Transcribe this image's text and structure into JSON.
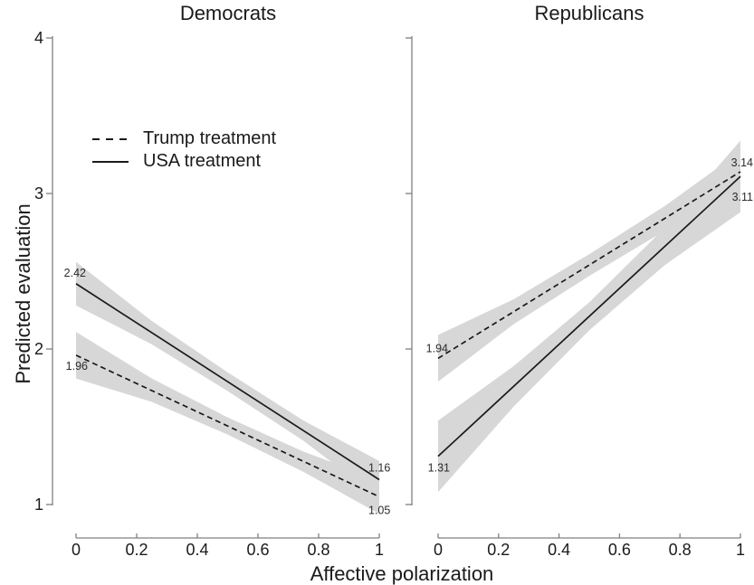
{
  "figure": {
    "background": "#ffffff",
    "band_color": "#d7d7d7",
    "line_color": "#1a1a1a",
    "axis_color": "#808080",
    "label_color": "#2b2b2b"
  },
  "legend": {
    "items": [
      {
        "label": "Trump treatment",
        "style": "dashed"
      },
      {
        "label": "USA treatment",
        "style": "solid"
      }
    ]
  },
  "chart_data": {
    "type": "line",
    "xlabel": "Affective polarization",
    "ylabel": "Predicted evaluation",
    "xlim": [
      0,
      1
    ],
    "ylim": [
      1,
      4
    ],
    "x_ticks": [
      0,
      0.2,
      0.4,
      0.6,
      0.8,
      1
    ],
    "x_tick_labels": [
      "0",
      "0.2",
      "0.4",
      "0.6",
      "0.8",
      "1"
    ],
    "y_ticks": [
      1,
      2,
      3,
      4
    ],
    "y_tick_labels": [
      "1",
      "2",
      "3",
      "4"
    ],
    "grid": false,
    "legend_position": "top-left-inside",
    "panels": [
      {
        "title": "Democrats",
        "series": [
          {
            "name": "Trump treatment",
            "style": "dashed",
            "x": [
              0,
              1
            ],
            "y": [
              1.96,
              1.05
            ],
            "labels": [
              "1.96",
              "1.05"
            ],
            "band": {
              "x": [
                0,
                0.25,
                0.5,
                0.75,
                1
              ],
              "upper": [
                2.11,
                1.81,
                1.56,
                1.34,
                1.16
              ],
              "lower": [
                1.81,
                1.66,
                1.45,
                1.21,
                0.94
              ]
            }
          },
          {
            "name": "USA treatment",
            "style": "solid",
            "x": [
              0,
              1
            ],
            "y": [
              2.42,
              1.16
            ],
            "labels": [
              "2.42",
              "1.16"
            ],
            "band": {
              "x": [
                0,
                0.25,
                0.5,
                0.75,
                1
              ],
              "upper": [
                2.56,
                2.18,
                1.85,
                1.54,
                1.28
              ],
              "lower": [
                2.28,
                2.03,
                1.73,
                1.41,
                1.04
              ]
            }
          }
        ]
      },
      {
        "title": "Republicans",
        "series": [
          {
            "name": "Trump treatment",
            "style": "dashed",
            "x": [
              0,
              1
            ],
            "y": [
              1.94,
              3.14
            ],
            "labels": [
              "1.94",
              "3.14"
            ],
            "band": {
              "x": [
                0,
                0.25,
                0.5,
                0.75,
                1
              ],
              "upper": [
                2.09,
                2.32,
                2.61,
                2.92,
                3.27
              ],
              "lower": [
                1.79,
                2.16,
                2.47,
                2.76,
                3.01
              ]
            }
          },
          {
            "name": "USA treatment",
            "style": "solid",
            "x": [
              0,
              1
            ],
            "y": [
              1.31,
              3.11
            ],
            "labels": [
              "1.31",
              "3.11"
            ],
            "band": {
              "x": [
                0,
                0.25,
                0.5,
                0.75,
                1
              ],
              "upper": [
                1.54,
                1.89,
                2.3,
                2.78,
                3.34
              ],
              "lower": [
                1.08,
                1.63,
                2.12,
                2.54,
                2.88
              ]
            }
          }
        ]
      }
    ]
  }
}
